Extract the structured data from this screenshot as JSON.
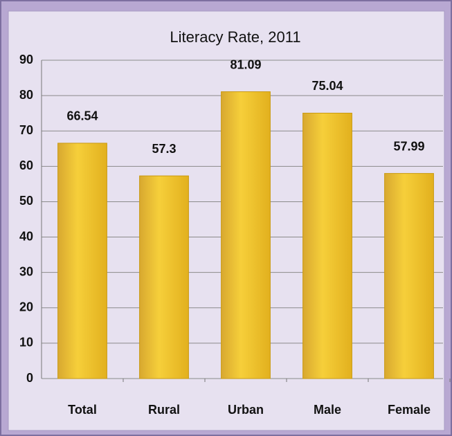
{
  "chart_data": {
    "type": "bar",
    "title": "Literacy Rate, 2011",
    "categories": [
      "Total",
      "Rural",
      "Urban",
      "Male",
      "Female"
    ],
    "values": [
      66.54,
      57.3,
      81.09,
      75.04,
      57.99
    ],
    "color": "#f0c224",
    "ylim": [
      0,
      90
    ],
    "yticks": [
      0,
      10,
      20,
      30,
      40,
      50,
      60,
      70,
      80,
      90
    ],
    "grid": true
  }
}
